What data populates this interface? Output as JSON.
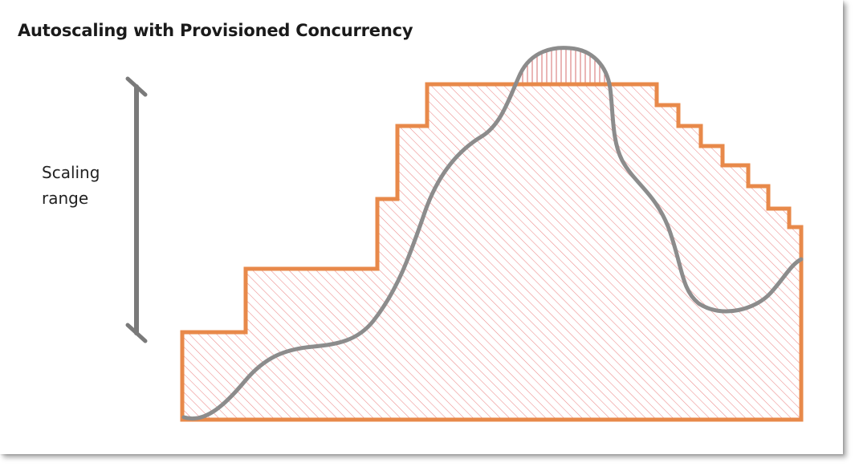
{
  "title": "Autoscaling with Provisioned Concurrency",
  "range_label": {
    "line1": "Scaling",
    "line2": "range"
  },
  "colors": {
    "capacity_outline": "#e8894a",
    "capacity_hatch": "#ec8a8a",
    "over_capacity_hatch": "#d97a7a",
    "demand_curve": "#8c8c8c",
    "range_bar": "#7a7a7a",
    "background": "#ffffff"
  },
  "icons": {
    "range_bar": "vertical-bracket-bar"
  }
}
